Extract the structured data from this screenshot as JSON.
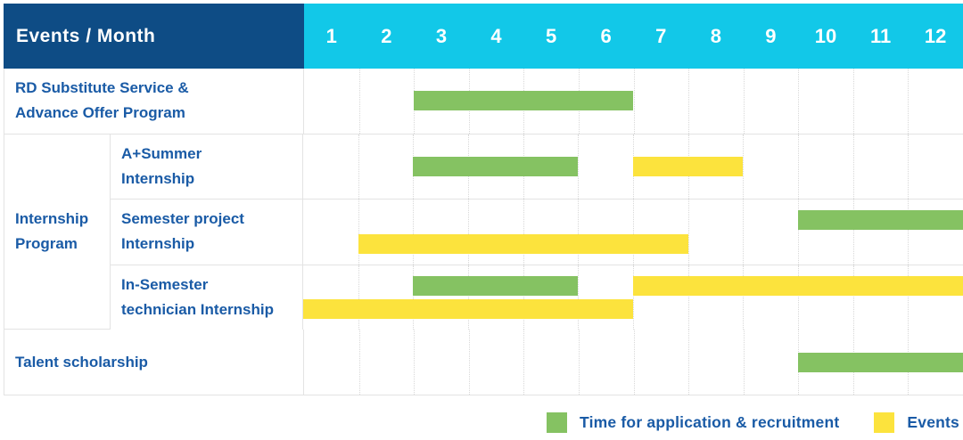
{
  "header": {
    "title": "Events / Month",
    "months": [
      "1",
      "2",
      "3",
      "4",
      "5",
      "6",
      "7",
      "8",
      "9",
      "10",
      "11",
      "12"
    ]
  },
  "colors": {
    "header_bg": "#0E4C85",
    "months_bg": "#12C8E8",
    "application": "#85C262",
    "events": "#FCE33D",
    "label_text": "#1A5BA6",
    "grid": "#E3E3E3"
  },
  "group_label": "Internship\nProgram",
  "legend": {
    "items": [
      {
        "label": "Time for application & recruitment",
        "color_key": "application"
      },
      {
        "label": "Events",
        "color_key": "events"
      }
    ]
  },
  "chart_data": {
    "type": "gantt",
    "title": "Events / Month",
    "x_axis": {
      "label": "Month",
      "ticks": [
        1,
        2,
        3,
        4,
        5,
        6,
        7,
        8,
        9,
        10,
        11,
        12
      ],
      "range": [
        1,
        12
      ],
      "grid": "dotted-vertical"
    },
    "series_legend": [
      {
        "name": "Time for application & recruitment",
        "color": "#85C262"
      },
      {
        "name": "Events",
        "color": "#FCE33D"
      }
    ],
    "rows": [
      {
        "id": "rd-substitute",
        "group": null,
        "label": "RD Substitute Service &\nAdvance Offer Program",
        "bars": [
          {
            "series": "Time for application & recruitment",
            "start_month": 3,
            "end_month": 6,
            "lane": "center"
          }
        ]
      },
      {
        "id": "a-plus-summer",
        "group": "Internship Program",
        "label": "A+Summer\nInternship",
        "bars": [
          {
            "series": "Time for application & recruitment",
            "start_month": 3,
            "end_month": 5,
            "lane": "center"
          },
          {
            "series": "Events",
            "start_month": 7,
            "end_month": 8,
            "lane": "center"
          }
        ]
      },
      {
        "id": "semester-project",
        "group": "Internship Program",
        "label": "Semester project\nInternship",
        "bars": [
          {
            "series": "Time for application & recruitment",
            "start_month": 10,
            "end_month": 12,
            "lane": "top"
          },
          {
            "series": "Events",
            "start_month": 2,
            "end_month": 7,
            "lane": "bottom"
          }
        ]
      },
      {
        "id": "in-semester",
        "group": "Internship Program",
        "label": "In-Semester\ntechnician Internship",
        "bars": [
          {
            "series": "Time for application & recruitment",
            "start_month": 3,
            "end_month": 5,
            "lane": "top"
          },
          {
            "series": "Events",
            "start_month": 7,
            "end_month": 12,
            "lane": "top"
          },
          {
            "series": "Events",
            "start_month": 1,
            "end_month": 6,
            "lane": "bottom"
          }
        ]
      },
      {
        "id": "talent-scholarship",
        "group": null,
        "label": "Talent scholarship",
        "bars": [
          {
            "series": "Time for application & recruitment",
            "start_month": 10,
            "end_month": 12,
            "lane": "center"
          }
        ]
      }
    ]
  }
}
